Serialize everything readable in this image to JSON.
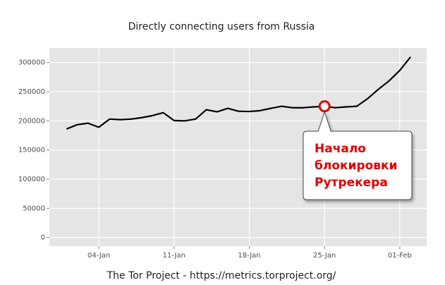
{
  "chart_data": {
    "type": "line",
    "title": "Directly connecting users from Russia",
    "footer": "The Tor Project - https://metrics.torproject.org/",
    "x": [
      1,
      2,
      3,
      4,
      5,
      6,
      7,
      8,
      9,
      10,
      11,
      12,
      13,
      14,
      15,
      16,
      17,
      18,
      19,
      20,
      21,
      22,
      23,
      24,
      25,
      26,
      27,
      28,
      29,
      30,
      31,
      32,
      33
    ],
    "values": [
      186000,
      193500,
      196000,
      189000,
      203000,
      202000,
      203000,
      205500,
      209000,
      214000,
      200500,
      200000,
      203000,
      219000,
      215500,
      221500,
      216500,
      216000,
      217500,
      221500,
      225000,
      222500,
      222500,
      224000,
      225000,
      222500,
      224000,
      225000,
      238000,
      254000,
      268500,
      286500,
      309500
    ],
    "color": "#000000",
    "xlim": [
      -0.6,
      34.5
    ],
    "xticks": [
      {
        "value": 4,
        "label": "04-Jan"
      },
      {
        "value": 11,
        "label": "11-Jan"
      },
      {
        "value": 18,
        "label": "18-Jan"
      },
      {
        "value": 25,
        "label": "25-Jan"
      },
      {
        "value": 32,
        "label": "01-Feb"
      }
    ],
    "ylim": [
      -15000,
      325000
    ],
    "yticks": [
      0,
      50000,
      100000,
      150000,
      200000,
      250000,
      300000
    ],
    "grid": true,
    "annotation": {
      "x": 25,
      "text": [
        "Начало",
        "блокировки",
        "Рутрекера"
      ],
      "color": "#dd0000"
    }
  }
}
